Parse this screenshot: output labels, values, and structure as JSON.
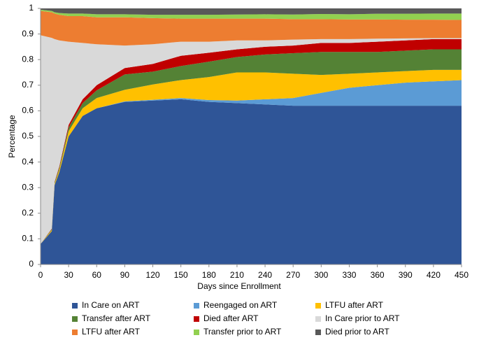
{
  "chart_data": {
    "type": "stacked-area",
    "x_label": "Days since Enrollment",
    "y_label": "Percentage",
    "x": [
      0,
      12,
      15,
      20,
      30,
      45,
      60,
      90,
      120,
      150,
      180,
      210,
      240,
      270,
      300,
      330,
      360,
      390,
      420,
      450
    ],
    "xlim": [
      0,
      450
    ],
    "xticks": [
      0,
      30,
      60,
      90,
      120,
      150,
      180,
      210,
      240,
      270,
      300,
      330,
      360,
      390,
      420,
      450
    ],
    "ylim": [
      0,
      1
    ],
    "yticks": [
      0,
      0.1,
      0.2,
      0.3,
      0.4,
      0.5,
      0.6,
      0.7,
      0.8,
      0.9,
      1
    ],
    "series": [
      {
        "name": "In Care on ART",
        "color": "#2f5597",
        "values": [
          0.08,
          0.13,
          0.31,
          0.36,
          0.5,
          0.58,
          0.61,
          0.635,
          0.64,
          0.645,
          0.635,
          0.63,
          0.625,
          0.62,
          0.62,
          0.62,
          0.62,
          0.62,
          0.62,
          0.62
        ]
      },
      {
        "name": "Reengaged on ART",
        "color": "#5b9bd5",
        "values": [
          0,
          0,
          0,
          0,
          0,
          0,
          0,
          0.002,
          0.003,
          0.005,
          0.007,
          0.01,
          0.02,
          0.03,
          0.05,
          0.07,
          0.08,
          0.09,
          0.095,
          0.1
        ]
      },
      {
        "name": "LTFU after ART",
        "color": "#ffc000",
        "values": [
          0,
          0.005,
          0.005,
          0.01,
          0.02,
          0.03,
          0.04,
          0.045,
          0.06,
          0.07,
          0.09,
          0.11,
          0.105,
          0.095,
          0.07,
          0.055,
          0.05,
          0.045,
          0.045,
          0.04
        ]
      },
      {
        "name": "Transfer after ART",
        "color": "#548235",
        "values": [
          0,
          0.003,
          0.005,
          0.008,
          0.015,
          0.02,
          0.03,
          0.06,
          0.05,
          0.055,
          0.06,
          0.06,
          0.07,
          0.08,
          0.09,
          0.085,
          0.08,
          0.08,
          0.08,
          0.08
        ]
      },
      {
        "name": "Died after ART",
        "color": "#c00000",
        "values": [
          0,
          0.002,
          0.003,
          0.005,
          0.01,
          0.015,
          0.02,
          0.025,
          0.03,
          0.04,
          0.035,
          0.03,
          0.03,
          0.03,
          0.035,
          0.035,
          0.04,
          0.04,
          0.04,
          0.04
        ]
      },
      {
        "name": "In Care prior to ART",
        "color": "#d9d9d9",
        "values": [
          0.815,
          0.745,
          0.557,
          0.492,
          0.325,
          0.22,
          0.16,
          0.088,
          0.077,
          0.055,
          0.043,
          0.035,
          0.025,
          0.023,
          0.015,
          0.015,
          0.012,
          0.008,
          0.004,
          0.004
        ]
      },
      {
        "name": "LTFU after ART",
        "color": "#ed7d31",
        "values": [
          0.095,
          0.1,
          0.1,
          0.1,
          0.1,
          0.105,
          0.105,
          0.11,
          0.102,
          0.09,
          0.09,
          0.085,
          0.085,
          0.08,
          0.078,
          0.077,
          0.075,
          0.073,
          0.072,
          0.071
        ]
      },
      {
        "name": "Transfer prior to ART",
        "color": "#92d050",
        "values": [
          0.005,
          0.005,
          0.005,
          0.007,
          0.01,
          0.01,
          0.012,
          0.012,
          0.013,
          0.015,
          0.015,
          0.016,
          0.017,
          0.018,
          0.02,
          0.02,
          0.022,
          0.023,
          0.024,
          0.025
        ]
      },
      {
        "name": "Died prior to ART",
        "color": "#595959",
        "values": [
          0.005,
          0.01,
          0.015,
          0.018,
          0.02,
          0.02,
          0.023,
          0.023,
          0.025,
          0.025,
          0.025,
          0.024,
          0.023,
          0.024,
          0.022,
          0.023,
          0.021,
          0.021,
          0.02,
          0.02
        ]
      }
    ]
  }
}
